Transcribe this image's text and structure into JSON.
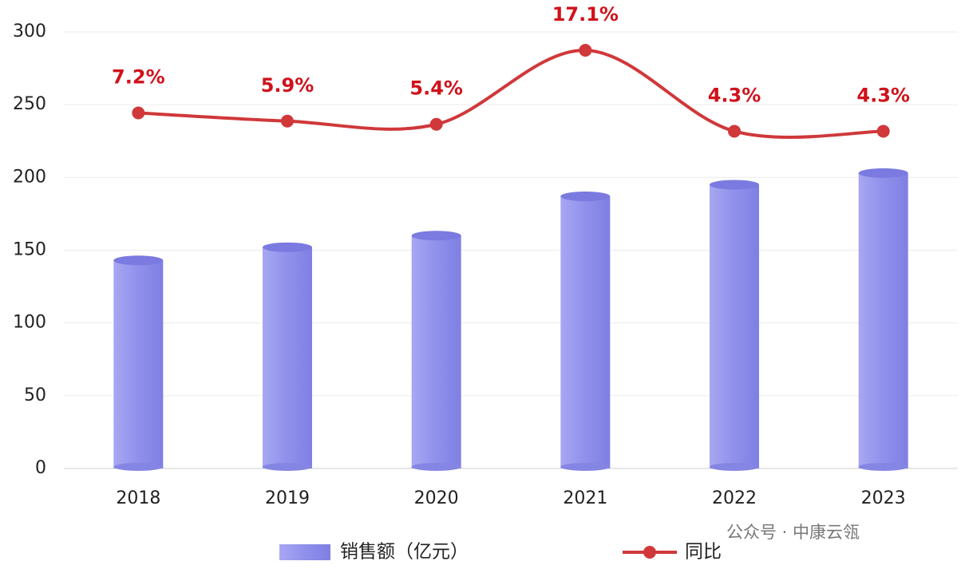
{
  "chart_data": {
    "type": "bar-line",
    "categories": [
      "2018",
      "2019",
      "2020",
      "2021",
      "2022",
      "2023"
    ],
    "series": [
      {
        "name": "销售额（亿元）",
        "type": "bar",
        "color": "#8b8be8",
        "values": [
          143,
          152,
          160,
          187,
          195,
          203
        ]
      },
      {
        "name": "同比",
        "type": "line",
        "axis": "y2",
        "color": "#d0383a",
        "values": [
          7.2,
          5.9,
          5.4,
          17.1,
          4.3,
          4.3
        ],
        "value_labels": [
          "7.2%",
          "5.9%",
          "5.4%",
          "17.1%",
          "4.3%",
          "4.3%"
        ]
      }
    ],
    "ylim": [
      0,
      300
    ],
    "yticks": [
      0,
      50,
      100,
      150,
      200,
      250,
      300
    ],
    "y2lim": [
      -49,
      20
    ],
    "grid": true,
    "legend": "bottom",
    "watermark": "公众号 · 中康云瓴"
  }
}
